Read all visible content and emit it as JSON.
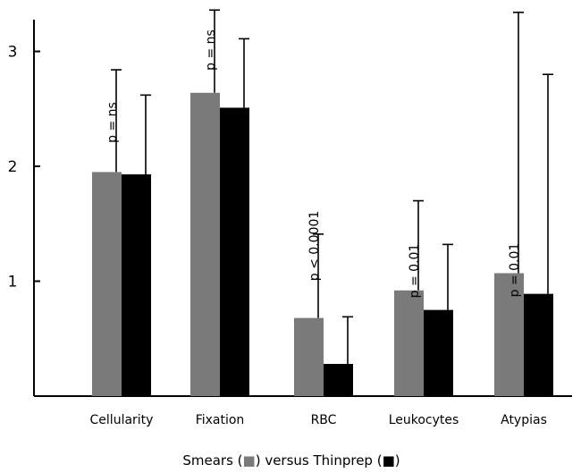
{
  "chart_data": {
    "type": "bar",
    "categories": [
      "Cellularity",
      "Fixation",
      "RBC",
      "Leukocytes",
      "Atypias"
    ],
    "series": [
      {
        "values": [
          1.95,
          2.64,
          0.68,
          0.92,
          1.07
        ],
        "errors": [
          0.89,
          0.72,
          0.73,
          0.78,
          2.27
        ]
      },
      {
        "values": [
          1.93,
          2.51,
          0.28,
          0.75,
          0.89
        ],
        "errors": [
          0.69,
          0.6,
          0.41,
          0.57,
          1.91
        ]
      }
    ],
    "annotations": [
      "p = ns",
      "p = ns",
      "p < 0.0001",
      "p = 0.01",
      "p = 0.01"
    ],
    "yticks": [
      1,
      2,
      3
    ],
    "ylim": [
      0,
      3.3
    ],
    "legend_text": [
      "Smears (",
      ") versus Thinprep (",
      ")"
    ],
    "colors": {
      "smears": "#7a7a7a",
      "thinprep": "#000000",
      "axis": "#000000"
    }
  }
}
